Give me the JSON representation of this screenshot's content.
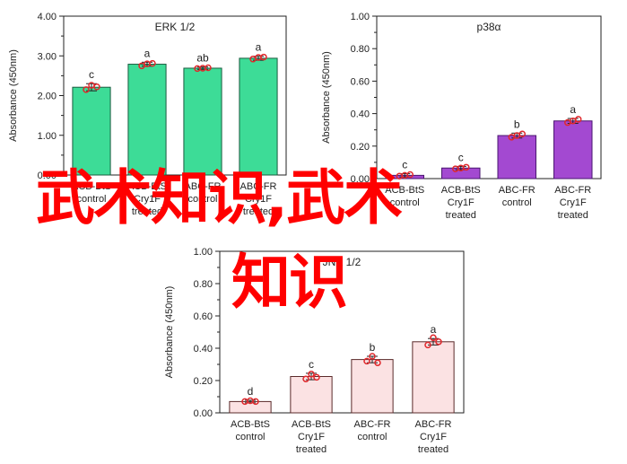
{
  "overlay_text": {
    "line1": "武术知识,武术",
    "line2": "知识"
  },
  "chart_data": [
    {
      "type": "bar",
      "title": "ERK 1/2",
      "ylabel": "Absorbance (450nm)",
      "ylim": [
        0,
        4.0
      ],
      "yticks": [
        "0.00",
        "1.00",
        "2.00",
        "3.00",
        "4.00"
      ],
      "categories": [
        [
          "ACB-BtS",
          "control"
        ],
        [
          "ACB-BtS",
          "Cry1F",
          "treated"
        ],
        [
          "ABC-FR",
          "control"
        ],
        [
          "ABC-FR",
          "Cry1F",
          "treated"
        ]
      ],
      "values": [
        2.21,
        2.79,
        2.69,
        2.94
      ],
      "errors": [
        0.09,
        0.05,
        0.03,
        0.05
      ],
      "points": [
        [
          2.15,
          2.26,
          2.22
        ],
        [
          2.75,
          2.8,
          2.81
        ],
        [
          2.68,
          2.69,
          2.7
        ],
        [
          2.92,
          2.96,
          2.97
        ]
      ],
      "letters": [
        "c",
        "a",
        "ab",
        "a"
      ],
      "bar_color": "#3ddc97",
      "edge_color": "#1a5c3f"
    },
    {
      "type": "bar",
      "title": "p38α",
      "ylabel": "Absorbance (450nm)",
      "ylim": [
        0,
        1.0
      ],
      "yticks": [
        "0.00",
        "0.20",
        "0.40",
        "0.60",
        "0.80",
        "1.00"
      ],
      "categories": [
        [
          "ACB-BtS",
          "control"
        ],
        [
          "ACB-BtS",
          "Cry1F",
          "treated"
        ],
        [
          "ABC-FR",
          "control"
        ],
        [
          "ABC-FR",
          "Cry1F",
          "treated"
        ]
      ],
      "values": [
        0.02,
        0.065,
        0.265,
        0.355
      ],
      "errors": [
        0.01,
        0.01,
        0.015,
        0.015
      ],
      "points": [
        [
          0.015,
          0.02,
          0.025
        ],
        [
          0.06,
          0.065,
          0.07
        ],
        [
          0.255,
          0.265,
          0.275
        ],
        [
          0.345,
          0.355,
          0.365
        ]
      ],
      "letters": [
        "c",
        "c",
        "b",
        "a"
      ],
      "bar_color": "#a349d1",
      "edge_color": "#4a1670"
    },
    {
      "type": "bar",
      "title": "JNK 1/2",
      "ylabel": "Absorbance (450nm)",
      "ylim": [
        0,
        1.0
      ],
      "yticks": [
        "0.00",
        "0.20",
        "0.40",
        "0.60",
        "0.80",
        "1.00"
      ],
      "categories": [
        [
          "ACB-BtS",
          "control"
        ],
        [
          "ACB-BtS",
          "Cry1F",
          "treated"
        ],
        [
          "ABC-FR",
          "control"
        ],
        [
          "ABC-FR",
          "Cry1F",
          "treated"
        ]
      ],
      "values": [
        0.07,
        0.225,
        0.33,
        0.44
      ],
      "errors": [
        0.008,
        0.02,
        0.02,
        0.02
      ],
      "points": [
        [
          0.07,
          0.075,
          0.07
        ],
        [
          0.21,
          0.24,
          0.22
        ],
        [
          0.32,
          0.35,
          0.31
        ],
        [
          0.42,
          0.465,
          0.44
        ]
      ],
      "letters": [
        "d",
        "c",
        "b",
        "a"
      ],
      "bar_color": "#fbe2e3",
      "edge_color": "#5a2a2a"
    }
  ]
}
